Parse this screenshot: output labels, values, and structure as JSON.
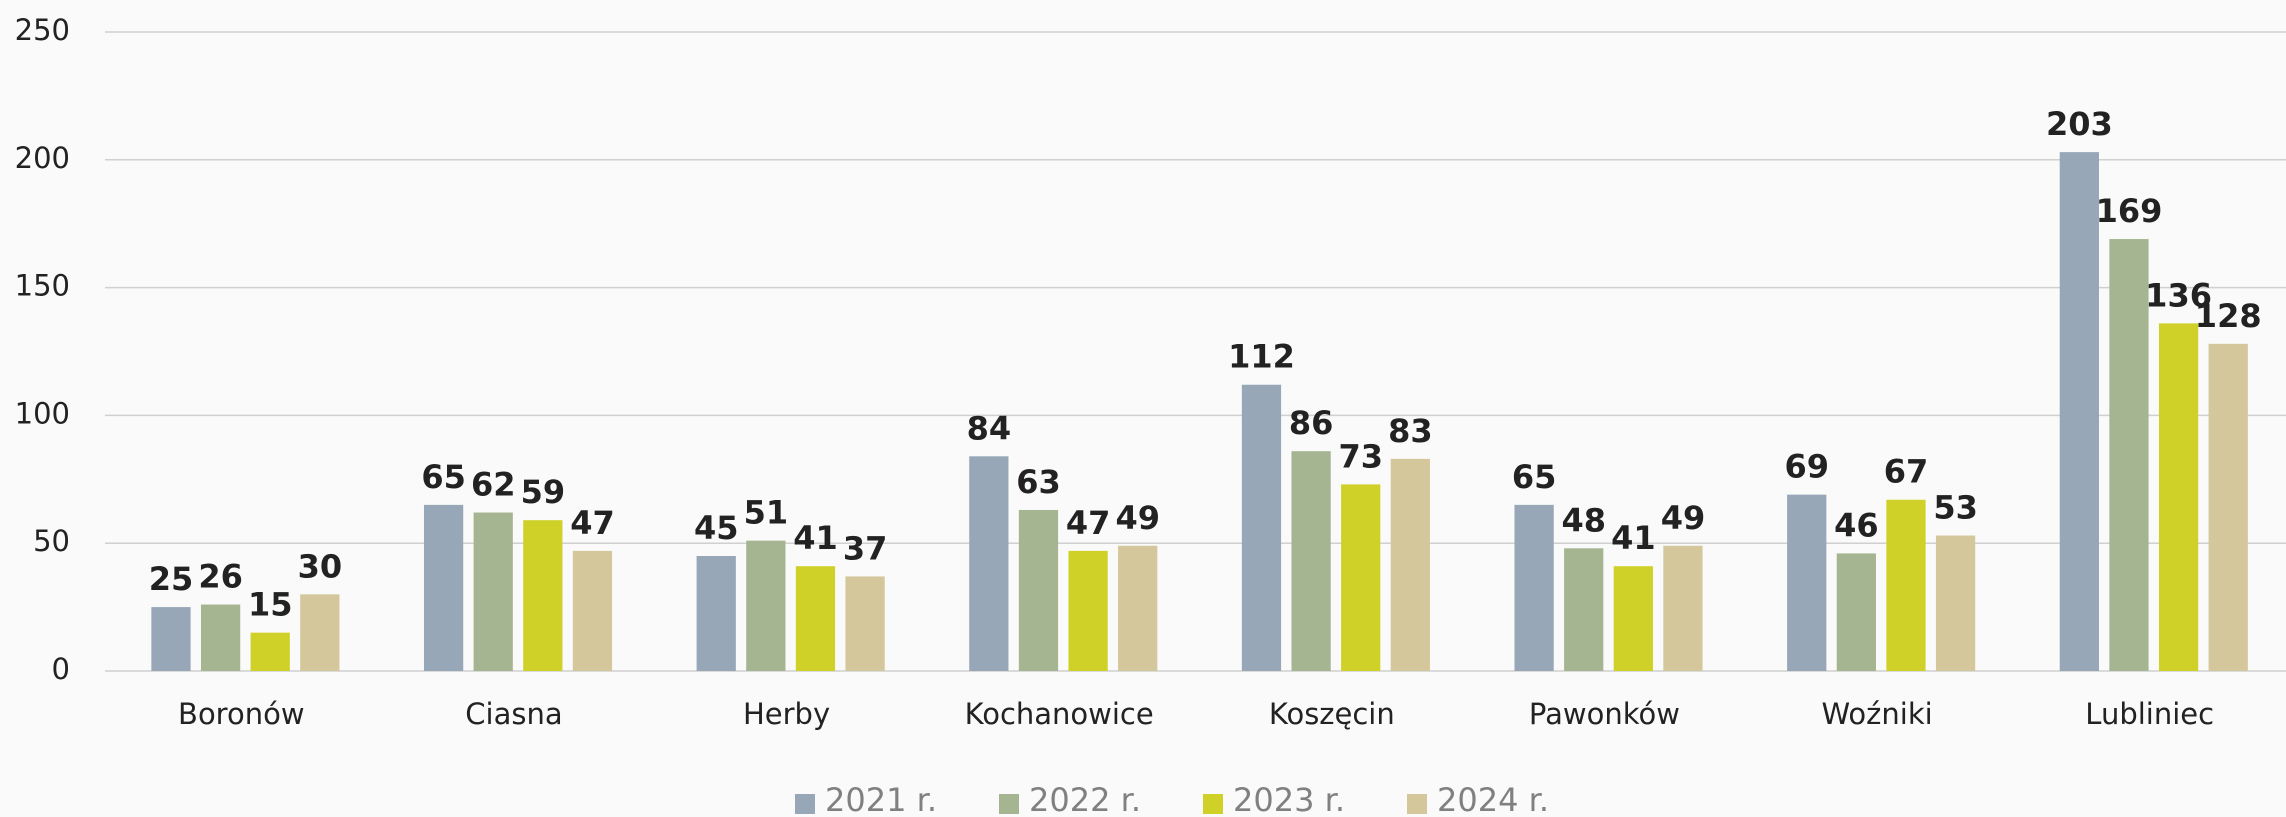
{
  "chart_data": {
    "type": "bar",
    "categories": [
      "Boronów",
      "Ciasna",
      "Herby",
      "Kochanowice",
      "Koszęcin",
      "Pawonków",
      "Woźniki",
      "Lubliniec"
    ],
    "series": [
      {
        "name": "2021 r.",
        "color": "#97a7b8",
        "values": [
          25,
          65,
          45,
          84,
          112,
          65,
          69,
          203
        ]
      },
      {
        "name": "2022 r.",
        "color": "#a6b591",
        "values": [
          26,
          62,
          51,
          63,
          86,
          48,
          46,
          169
        ]
      },
      {
        "name": "2023 r.",
        "color": "#cfd129",
        "values": [
          15,
          59,
          41,
          47,
          73,
          41,
          67,
          136
        ]
      },
      {
        "name": "2024 r.",
        "color": "#d4c79c",
        "values": [
          30,
          47,
          37,
          49,
          83,
          49,
          53,
          128
        ]
      }
    ],
    "ylim": [
      0,
      250
    ],
    "yticks": [
      0,
      50,
      100,
      150,
      200,
      250
    ],
    "grid": true,
    "legend": "bottom"
  }
}
